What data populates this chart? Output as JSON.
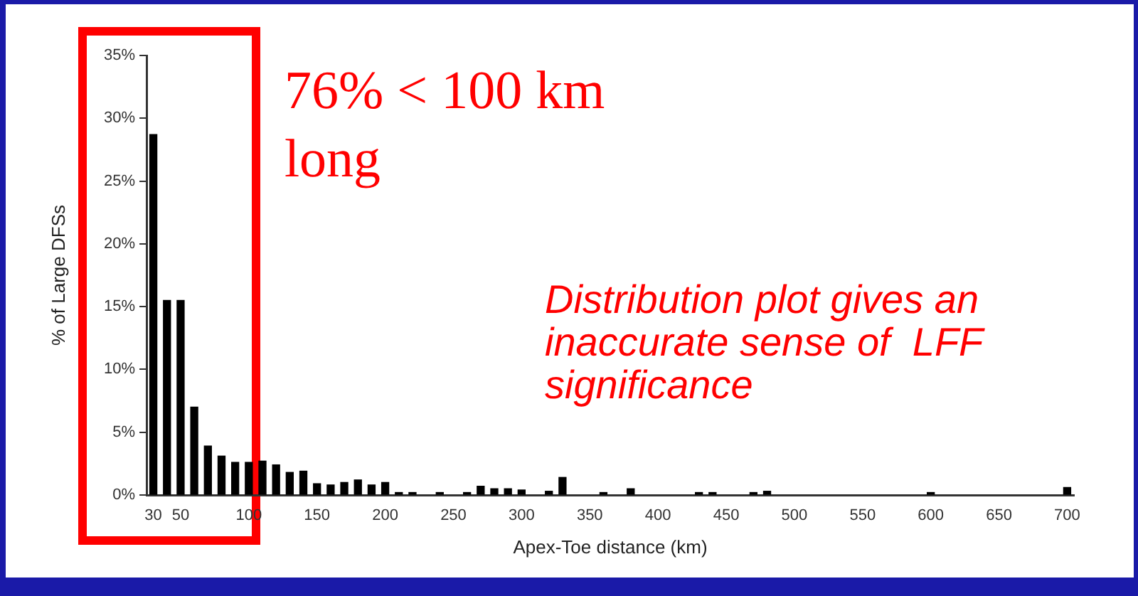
{
  "chart_data": {
    "type": "bar",
    "xlabel": "Apex-Toe distance (km)",
    "ylabel": "% of Large DFSs",
    "x": [
      30,
      40,
      50,
      60,
      70,
      80,
      90,
      100,
      110,
      120,
      130,
      140,
      150,
      160,
      170,
      180,
      190,
      200,
      210,
      220,
      240,
      260,
      270,
      280,
      290,
      300,
      320,
      330,
      360,
      380,
      430,
      440,
      470,
      480,
      600,
      700
    ],
    "series": [
      {
        "color": "#000000",
        "values": [
          28.7,
          15.5,
          15.5,
          7,
          3.9,
          3.1,
          2.6,
          2.6,
          2.7,
          2.4,
          1.8,
          1.9,
          0.9,
          0.8,
          1,
          1.2,
          0.8,
          1,
          0.2,
          0.2,
          0.2,
          0.2,
          0.7,
          0.5,
          0.5,
          0.4,
          0.3,
          1.4,
          0.2,
          0.5,
          0.2,
          0.2,
          0.2,
          0.3,
          0.2,
          0.6
        ]
      }
    ],
    "xlim": [
      25,
      705
    ],
    "xticks": [
      30,
      50,
      100,
      150,
      200,
      250,
      300,
      350,
      400,
      450,
      500,
      550,
      600,
      650,
      700
    ],
    "ylim": [
      0,
      35
    ],
    "yticks": [
      {
        "value": 0,
        "label": "0%"
      },
      {
        "value": 5,
        "label": "5%"
      },
      {
        "value": 10,
        "label": "10%"
      },
      {
        "value": 15,
        "label": "15%"
      },
      {
        "value": 20,
        "label": "20%"
      },
      {
        "value": 25,
        "label": "25%"
      },
      {
        "value": 30,
        "label": "30%"
      },
      {
        "value": 35,
        "label": "35%"
      }
    ],
    "grid": false,
    "legend": false,
    "annotations": [
      "76% < 100 km long",
      "Distribution plot gives an inaccurate sense of  LFF significance"
    ]
  }
}
